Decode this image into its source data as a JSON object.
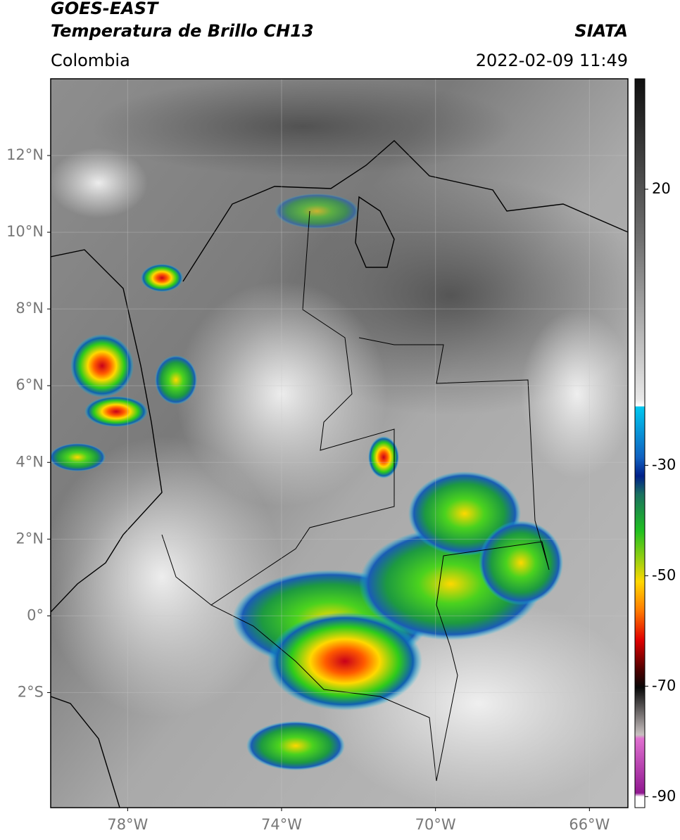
{
  "header": {
    "title": "GOES-EAST",
    "subtitle": "Temperatura de Brillo CH13",
    "agency": "SIATA",
    "region": "Colombia",
    "datetime": "2022-02-09 11:49"
  },
  "map": {
    "lonlim": [
      -80,
      -65
    ],
    "latlim": [
      -5,
      14
    ],
    "lon_ticks": [
      {
        "value": -78,
        "label": "78°W"
      },
      {
        "value": -74,
        "label": "74°W"
      },
      {
        "value": -70,
        "label": "70°W"
      },
      {
        "value": -66,
        "label": "66°W"
      }
    ],
    "lat_ticks": [
      {
        "value": 12,
        "label": "12°N"
      },
      {
        "value": 10,
        "label": "10°N"
      },
      {
        "value": 8,
        "label": "8°N"
      },
      {
        "value": 6,
        "label": "6°N"
      },
      {
        "value": 4,
        "label": "4°N"
      },
      {
        "value": 2,
        "label": "2°N"
      },
      {
        "value": 0,
        "label": "0°"
      },
      {
        "value": -2,
        "label": "2°S"
      }
    ],
    "grid": true
  },
  "colorbar": {
    "vlim": [
      -92,
      40
    ],
    "ticks": [
      20,
      -30,
      -50,
      -70,
      -90
    ]
  }
}
